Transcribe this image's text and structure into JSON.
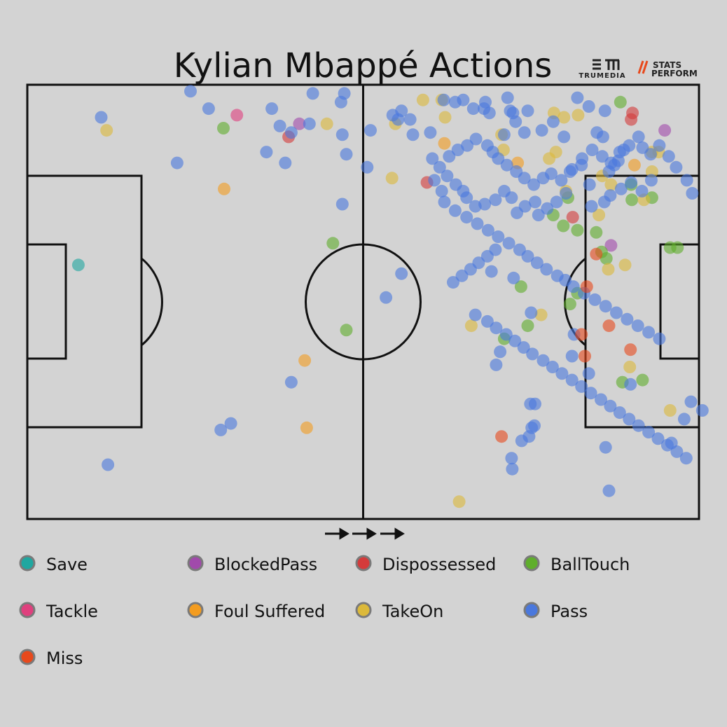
{
  "logos": {
    "trumedia": "TRUMEDIA",
    "stats_perform_line1": "STATS",
    "stats_perform_line2": "PERFORM"
  },
  "chart_data": {
    "type": "scatter",
    "title": "Kylian Mbappé Actions",
    "xlim": [
      0,
      100
    ],
    "ylim": [
      0,
      100
    ],
    "attack_direction": "left-to-right",
    "grid": false,
    "legend_position": "bottom",
    "colors": {
      "Save": "#1fa7a0",
      "BlockedPass": "#a14aab",
      "Dispossessed": "#d43b3b",
      "BallTouch": "#5fae2c",
      "Tackle": "#e0407e",
      "Foul Suffered": "#f39c1f",
      "TakeOn": "#dcb93a",
      "Pass": "#4a78dd",
      "Miss": "#e8491c"
    },
    "legend_order": [
      "Save",
      "BlockedPass",
      "Dispossessed",
      "BallTouch",
      "Tackle",
      "Foul Suffered",
      "TakeOn",
      "Pass",
      "Miss"
    ],
    "series": [
      {
        "name": "Save",
        "points": [
          [
            7.6,
            58.5
          ]
        ]
      },
      {
        "name": "BlockedPass",
        "points": [
          [
            40.5,
            91.0
          ],
          [
            86.9,
            63.0
          ],
          [
            94.9,
            89.5
          ]
        ]
      },
      {
        "name": "Dispossessed",
        "points": [
          [
            38.9,
            88.0
          ],
          [
            59.5,
            77.5
          ],
          [
            81.2,
            69.5
          ],
          [
            90.1,
            93.5
          ],
          [
            89.9,
            92.0
          ]
        ]
      },
      {
        "name": "BallTouch",
        "points": [
          [
            29.2,
            90.0
          ],
          [
            45.5,
            63.5
          ],
          [
            47.5,
            43.5
          ],
          [
            73.5,
            53.5
          ],
          [
            71.0,
            41.5
          ],
          [
            74.5,
            44.5
          ],
          [
            78.3,
            70.0
          ],
          [
            80.5,
            74.0
          ],
          [
            79.8,
            67.5
          ],
          [
            81.9,
            66.5
          ],
          [
            84.7,
            66.0
          ],
          [
            85.5,
            61.5
          ],
          [
            86.2,
            60.0
          ],
          [
            81.9,
            52.0
          ],
          [
            80.8,
            49.5
          ],
          [
            88.3,
            96.0
          ],
          [
            89.9,
            77.0
          ],
          [
            90.0,
            73.5
          ],
          [
            93.0,
            74.0
          ],
          [
            95.7,
            62.5
          ],
          [
            96.8,
            62.5
          ],
          [
            88.6,
            31.5
          ],
          [
            91.6,
            32.0
          ]
        ]
      },
      {
        "name": "Tackle",
        "points": [
          [
            31.2,
            93.0
          ]
        ]
      },
      {
        "name": "Foul Suffered",
        "points": [
          [
            29.3,
            76.0
          ],
          [
            41.3,
            36.5
          ],
          [
            41.6,
            21.0
          ],
          [
            62.1,
            86.5
          ],
          [
            73.0,
            82.0
          ],
          [
            90.4,
            81.5
          ]
        ]
      },
      {
        "name": "TakeOn",
        "points": [
          [
            11.8,
            89.5
          ],
          [
            44.6,
            91.0
          ],
          [
            54.8,
            91.0
          ],
          [
            54.3,
            78.5
          ],
          [
            58.9,
            96.5
          ],
          [
            61.7,
            96.5
          ],
          [
            62.2,
            92.5
          ],
          [
            70.6,
            88.5
          ],
          [
            70.9,
            85.0
          ],
          [
            78.4,
            93.5
          ],
          [
            79.9,
            92.5
          ],
          [
            82.0,
            93.0
          ],
          [
            78.7,
            84.5
          ],
          [
            77.7,
            83.0
          ],
          [
            80.2,
            75.5
          ],
          [
            85.6,
            79.0
          ],
          [
            86.9,
            77.0
          ],
          [
            85.1,
            70.0
          ],
          [
            89.0,
            58.5
          ],
          [
            86.5,
            57.5
          ],
          [
            93.0,
            84.5
          ],
          [
            94.0,
            84.5
          ],
          [
            93.0,
            80.0
          ],
          [
            91.8,
            73.5
          ],
          [
            76.5,
            47.0
          ],
          [
            66.1,
            44.5
          ],
          [
            89.7,
            35.0
          ],
          [
            95.7,
            25.0
          ],
          [
            64.3,
            4.0
          ]
        ]
      },
      {
        "name": "Pass",
        "points": [
          [
            11.0,
            92.5
          ],
          [
            24.3,
            98.5
          ],
          [
            27.0,
            94.5
          ],
          [
            22.3,
            82.0
          ],
          [
            36.4,
            94.5
          ],
          [
            37.6,
            90.5
          ],
          [
            39.3,
            89.0
          ],
          [
            42.0,
            91.0
          ],
          [
            42.5,
            98.0
          ],
          [
            46.7,
            96.0
          ],
          [
            47.2,
            98.0
          ],
          [
            46.9,
            88.5
          ],
          [
            47.5,
            84.0
          ],
          [
            35.6,
            84.5
          ],
          [
            38.4,
            82.0
          ],
          [
            46.9,
            72.5
          ],
          [
            50.6,
            81.0
          ],
          [
            51.1,
            89.5
          ],
          [
            54.4,
            93.0
          ],
          [
            55.7,
            94.0
          ],
          [
            55.2,
            92.0
          ],
          [
            57.0,
            92.0
          ],
          [
            57.4,
            88.5
          ],
          [
            55.7,
            56.5
          ],
          [
            53.4,
            51.0
          ],
          [
            60.0,
            89.0
          ],
          [
            62.0,
            96.5
          ],
          [
            63.7,
            96.0
          ],
          [
            64.9,
            96.5
          ],
          [
            66.4,
            94.5
          ],
          [
            68.2,
            96.0
          ],
          [
            68.0,
            94.5
          ],
          [
            68.8,
            93.5
          ],
          [
            71.5,
            97.0
          ],
          [
            71.9,
            94.0
          ],
          [
            72.3,
            93.5
          ],
          [
            74.5,
            94.0
          ],
          [
            72.7,
            91.5
          ],
          [
            71.0,
            88.5
          ],
          [
            74.0,
            89.0
          ],
          [
            76.6,
            89.5
          ],
          [
            78.3,
            91.5
          ],
          [
            79.9,
            88.0
          ],
          [
            81.9,
            97.0
          ],
          [
            83.6,
            95.0
          ],
          [
            86.0,
            94.0
          ],
          [
            84.8,
            89.0
          ],
          [
            85.7,
            88.0
          ],
          [
            88.8,
            85.0
          ],
          [
            88.0,
            82.5
          ],
          [
            87.4,
            81.5
          ],
          [
            86.6,
            80.0
          ],
          [
            89.9,
            77.5
          ],
          [
            91.5,
            75.5
          ],
          [
            92.9,
            78.0
          ],
          [
            88.4,
            76.0
          ],
          [
            86.8,
            74.5
          ],
          [
            85.9,
            73.0
          ],
          [
            84.0,
            72.0
          ],
          [
            83.7,
            77.0
          ],
          [
            82.5,
            81.5
          ],
          [
            80.8,
            80.0
          ],
          [
            80.2,
            75.0
          ],
          [
            78.8,
            73.0
          ],
          [
            77.4,
            71.5
          ],
          [
            76.1,
            70.0
          ],
          [
            75.6,
            73.0
          ],
          [
            74.1,
            72.0
          ],
          [
            72.9,
            70.5
          ],
          [
            72.1,
            74.0
          ],
          [
            71.0,
            75.5
          ],
          [
            69.7,
            73.5
          ],
          [
            68.1,
            72.5
          ],
          [
            66.7,
            72.0
          ],
          [
            65.4,
            74.0
          ],
          [
            64.9,
            75.5
          ],
          [
            63.8,
            77.0
          ],
          [
            62.5,
            79.0
          ],
          [
            61.4,
            81.0
          ],
          [
            60.3,
            83.0
          ],
          [
            62.8,
            83.5
          ],
          [
            64.1,
            85.0
          ],
          [
            65.5,
            86.0
          ],
          [
            66.8,
            87.5
          ],
          [
            68.5,
            86.0
          ],
          [
            69.3,
            84.5
          ],
          [
            70.1,
            83.0
          ],
          [
            71.4,
            81.5
          ],
          [
            72.8,
            80.0
          ],
          [
            74.0,
            78.5
          ],
          [
            75.4,
            77.0
          ],
          [
            76.8,
            78.5
          ],
          [
            78.0,
            79.5
          ],
          [
            79.5,
            78.0
          ],
          [
            81.1,
            80.5
          ],
          [
            82.6,
            83.0
          ],
          [
            84.1,
            85.0
          ],
          [
            85.6,
            83.5
          ],
          [
            86.9,
            82.0
          ],
          [
            88.2,
            84.5
          ],
          [
            89.6,
            86.0
          ],
          [
            91.0,
            88.0
          ],
          [
            91.6,
            85.5
          ],
          [
            92.8,
            84.0
          ],
          [
            94.1,
            86.0
          ],
          [
            95.5,
            83.5
          ],
          [
            96.6,
            81.0
          ],
          [
            98.2,
            78.0
          ],
          [
            99.0,
            75.0
          ],
          [
            60.6,
            78.0
          ],
          [
            61.7,
            75.5
          ],
          [
            62.1,
            73.0
          ],
          [
            63.7,
            71.0
          ],
          [
            65.4,
            69.5
          ],
          [
            67.0,
            68.0
          ],
          [
            68.6,
            66.5
          ],
          [
            70.1,
            65.0
          ],
          [
            71.7,
            63.5
          ],
          [
            73.3,
            62.0
          ],
          [
            74.5,
            60.5
          ],
          [
            75.9,
            59.0
          ],
          [
            77.3,
            57.5
          ],
          [
            78.9,
            56.0
          ],
          [
            80.1,
            55.0
          ],
          [
            81.3,
            53.5
          ],
          [
            82.9,
            52.0
          ],
          [
            84.5,
            50.5
          ],
          [
            86.1,
            49.0
          ],
          [
            87.7,
            47.5
          ],
          [
            89.3,
            46.0
          ],
          [
            90.9,
            44.5
          ],
          [
            92.5,
            43.0
          ],
          [
            94.1,
            41.5
          ],
          [
            69.7,
            62.0
          ],
          [
            68.5,
            60.5
          ],
          [
            67.2,
            59.0
          ],
          [
            66.0,
            57.5
          ],
          [
            64.7,
            56.0
          ],
          [
            63.4,
            54.5
          ],
          [
            66.7,
            47.0
          ],
          [
            68.5,
            45.5
          ],
          [
            69.8,
            44.0
          ],
          [
            71.3,
            42.5
          ],
          [
            72.6,
            41.0
          ],
          [
            73.9,
            39.5
          ],
          [
            75.2,
            38.0
          ],
          [
            76.8,
            36.5
          ],
          [
            78.2,
            35.0
          ],
          [
            79.6,
            33.5
          ],
          [
            81.1,
            32.0
          ],
          [
            82.5,
            30.5
          ],
          [
            83.9,
            29.0
          ],
          [
            85.4,
            27.5
          ],
          [
            86.8,
            26.0
          ],
          [
            88.2,
            24.5
          ],
          [
            89.6,
            23.0
          ],
          [
            91.0,
            21.5
          ],
          [
            92.5,
            20.0
          ],
          [
            93.9,
            18.5
          ],
          [
            95.3,
            17.0
          ],
          [
            96.7,
            15.5
          ],
          [
            98.1,
            14.0
          ],
          [
            83.6,
            33.5
          ],
          [
            89.8,
            31.0
          ],
          [
            86.1,
            16.5
          ],
          [
            95.9,
            17.5
          ],
          [
            100.5,
            25.0
          ],
          [
            74.9,
            26.5
          ],
          [
            75.6,
            26.5
          ],
          [
            75.1,
            21.0
          ],
          [
            75.5,
            21.5
          ],
          [
            74.7,
            19.0
          ],
          [
            73.6,
            18.0
          ],
          [
            72.1,
            14.0
          ],
          [
            72.2,
            11.5
          ],
          [
            86.6,
            6.5
          ],
          [
            39.3,
            31.5
          ],
          [
            30.3,
            22.0
          ],
          [
            28.8,
            20.5
          ],
          [
            12.0,
            12.5
          ],
          [
            98.8,
            27.0
          ],
          [
            97.8,
            23.0
          ],
          [
            81.4,
            42.5
          ],
          [
            81.1,
            37.5
          ],
          [
            70.4,
            38.5
          ],
          [
            69.8,
            35.5
          ],
          [
            72.4,
            55.5
          ],
          [
            69.1,
            57.0
          ],
          [
            75.0,
            47.5
          ]
        ]
      },
      {
        "name": "Miss",
        "points": [
          [
            83.3,
            53.5
          ],
          [
            82.5,
            42.5
          ],
          [
            86.6,
            44.5
          ],
          [
            83.0,
            37.5
          ],
          [
            70.6,
            19.0
          ],
          [
            89.8,
            39.0
          ],
          [
            84.7,
            61.0
          ]
        ]
      }
    ]
  }
}
